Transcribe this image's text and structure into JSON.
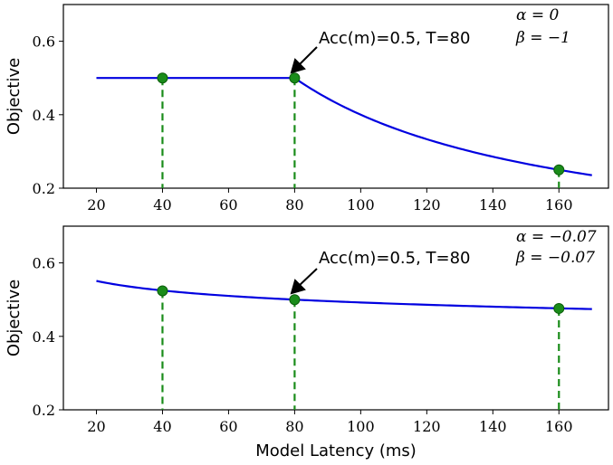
{
  "chart_data": [
    {
      "type": "line",
      "title": "",
      "xlabel": "",
      "ylabel": "Objective",
      "xlim": [
        10,
        175
      ],
      "ylim": [
        0.2,
        0.7
      ],
      "xticks": [
        20,
        40,
        60,
        80,
        100,
        120,
        140,
        160
      ],
      "yticks": [
        0.2,
        0.4,
        0.6
      ],
      "tick_labels_x": [
        "20",
        "40",
        "60",
        "80",
        "100",
        "120",
        "140",
        "160"
      ],
      "tick_labels_y": [
        "0.2",
        "0.4",
        "0.6"
      ],
      "params": {
        "alpha": 0,
        "beta": -1,
        "alpha_label": "α = 0",
        "beta_label": "β = −1"
      },
      "series": [
        {
          "name": "objective",
          "acc": 0.5,
          "T": 80,
          "x_range": [
            20,
            170
          ]
        }
      ],
      "points": [
        {
          "x": 40,
          "y": 0.5
        },
        {
          "x": 80,
          "y": 0.5
        },
        {
          "x": 160,
          "y": 0.25
        }
      ],
      "annotation": {
        "text": "Acc(m)=0.5, T=80",
        "x": 80,
        "y": 0.5
      }
    },
    {
      "type": "line",
      "title": "",
      "xlabel": "Model Latency (ms)",
      "ylabel": "Objective",
      "xlim": [
        10,
        175
      ],
      "ylim": [
        0.2,
        0.7
      ],
      "xticks": [
        20,
        40,
        60,
        80,
        100,
        120,
        140,
        160
      ],
      "yticks": [
        0.2,
        0.4,
        0.6
      ],
      "tick_labels_x": [
        "20",
        "40",
        "60",
        "80",
        "100",
        "120",
        "140",
        "160"
      ],
      "tick_labels_y": [
        "0.2",
        "0.4",
        "0.6"
      ],
      "params": {
        "alpha": -0.07,
        "beta": -0.07,
        "alpha_label": "α = −0.07",
        "beta_label": "β = −0.07"
      },
      "series": [
        {
          "name": "objective",
          "acc": 0.5,
          "T": 80,
          "x_range": [
            20,
            170
          ]
        }
      ],
      "points": [
        {
          "x": 40,
          "y": 0.524
        },
        {
          "x": 80,
          "y": 0.5
        },
        {
          "x": 160,
          "y": 0.476
        }
      ],
      "annotation": {
        "text": "Acc(m)=0.5, T=80",
        "x": 80,
        "y": 0.5
      }
    }
  ]
}
